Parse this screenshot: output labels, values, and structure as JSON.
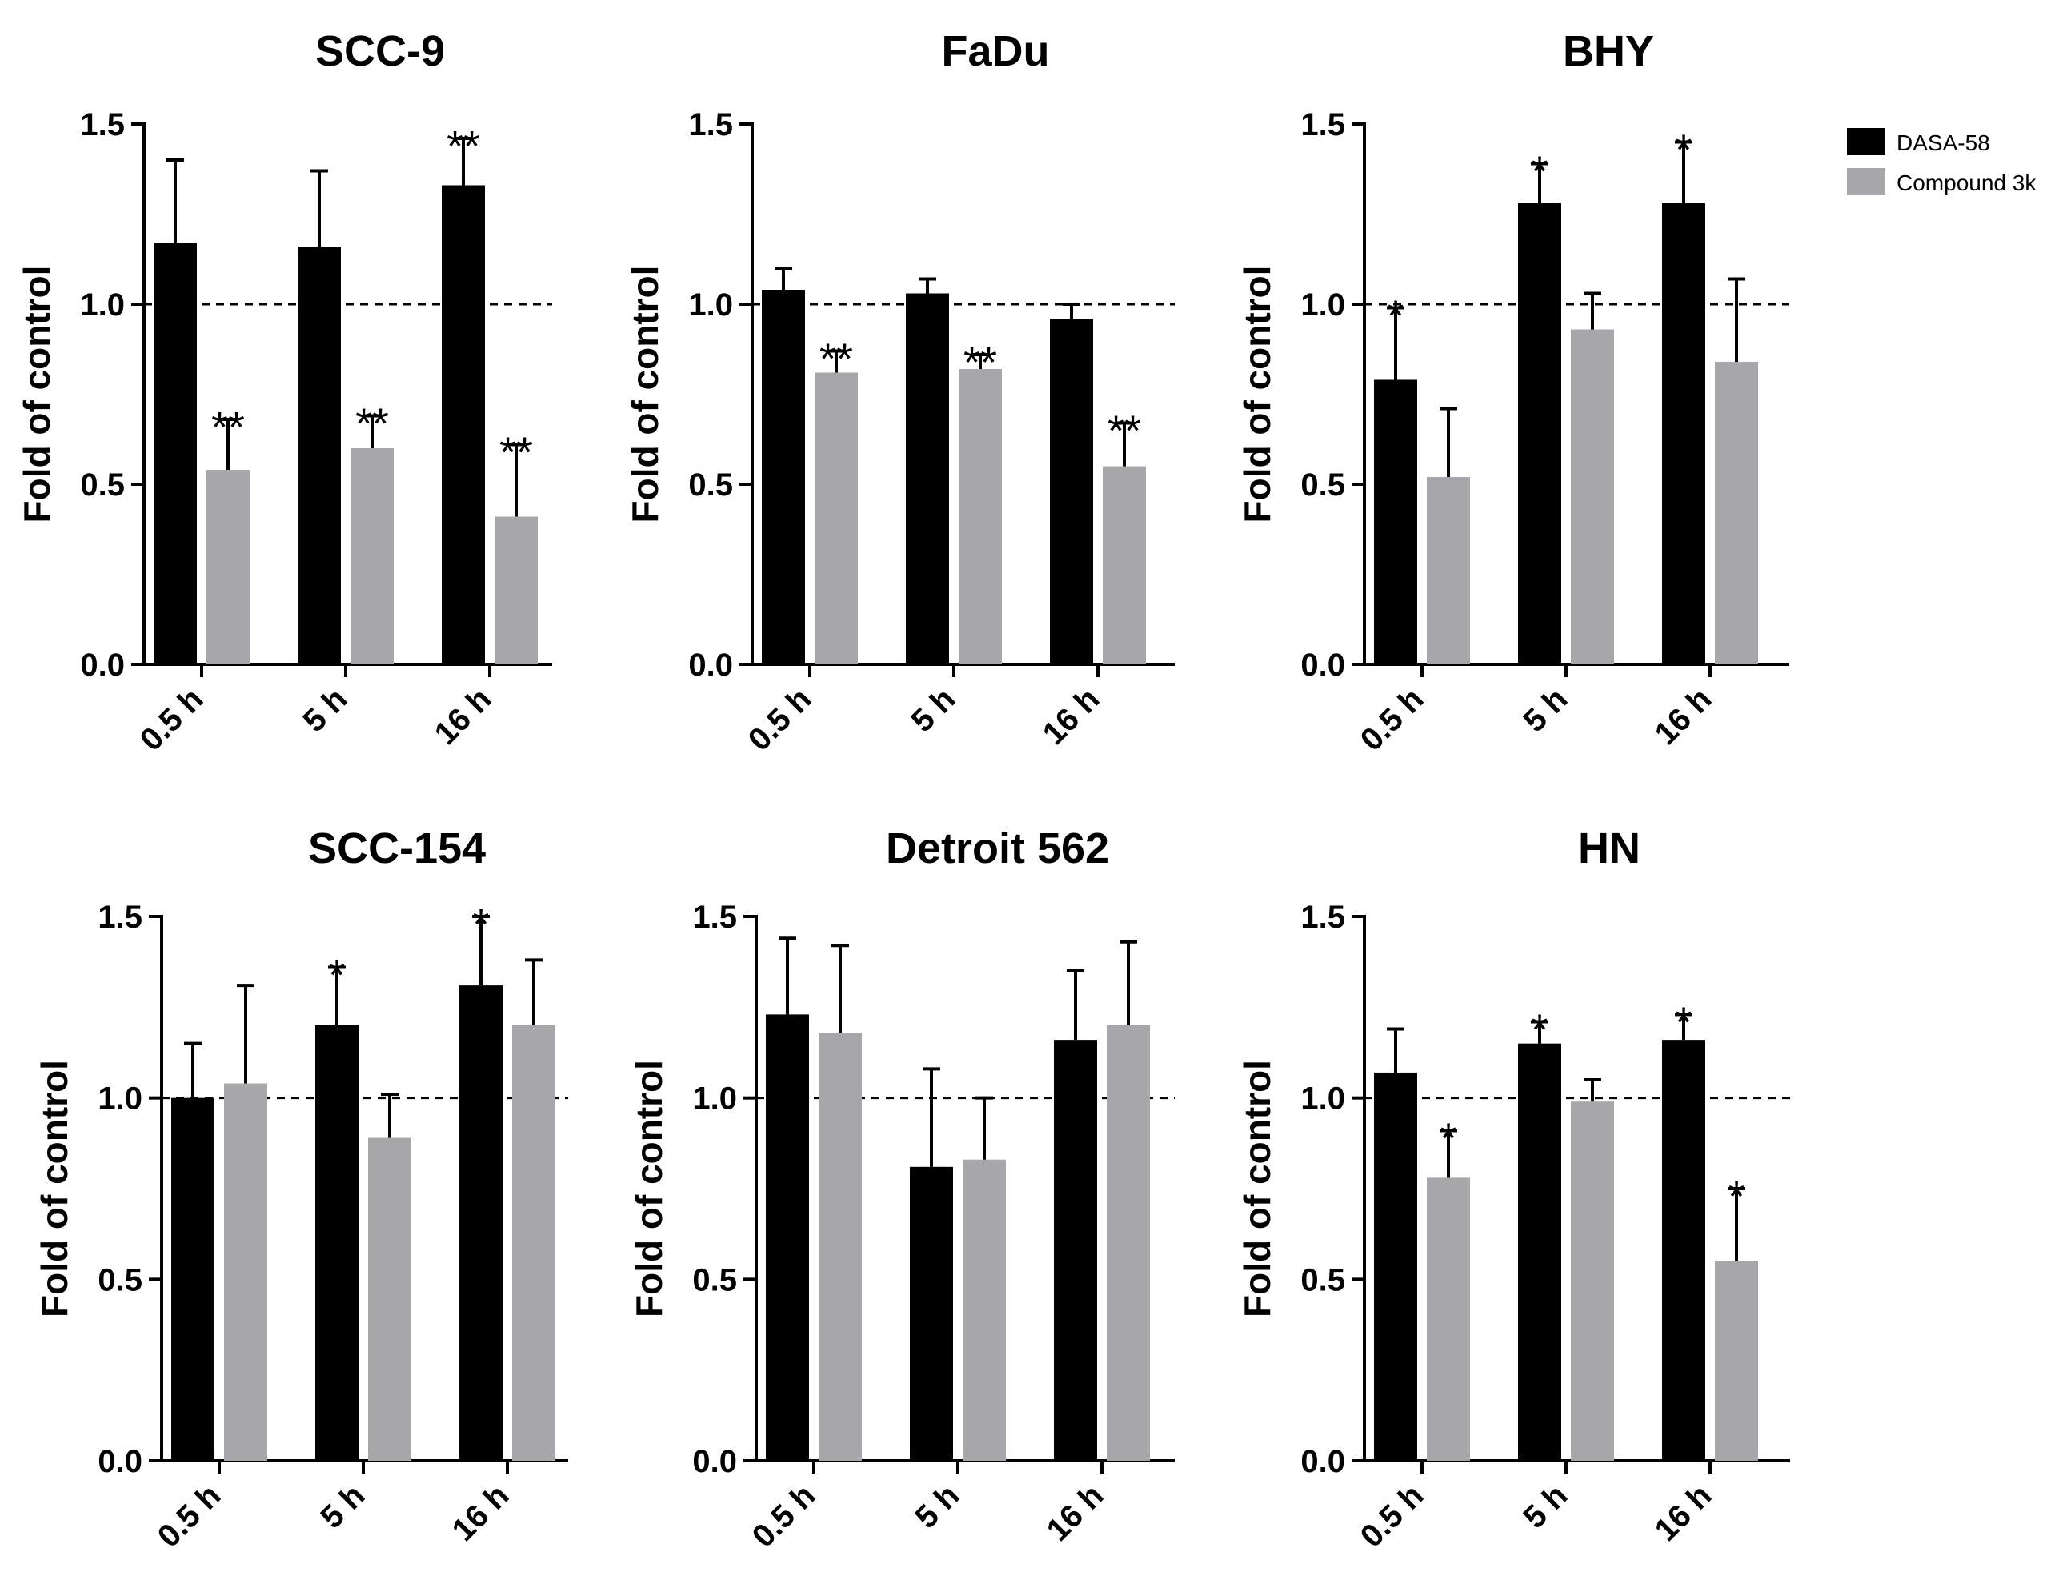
{
  "colors": {
    "dasa": "#000000",
    "compound": "#a7a7ab"
  },
  "legend": {
    "position": "top-right",
    "entries": [
      {
        "name": "DASA-58",
        "color": "#000000"
      },
      {
        "name": "Compound 3k",
        "color": "#a7a7ab"
      }
    ]
  },
  "chart_data": [
    {
      "type": "bar",
      "title": "SCC-9",
      "ylabel": "Fold of control",
      "xlabel": "",
      "categories": [
        "0.5 h",
        "5 h",
        "16 h"
      ],
      "ylim": [
        0,
        1.5
      ],
      "yticks": [
        "0.0",
        "0.5",
        "1.0",
        "1.5"
      ],
      "reference_line": 1.0,
      "series": [
        {
          "name": "DASA-58",
          "values": [
            1.17,
            1.16,
            1.33
          ],
          "errors": [
            0.23,
            0.21,
            0.13
          ],
          "significance": [
            "",
            "",
            "**"
          ]
        },
        {
          "name": "Compound 3k",
          "values": [
            0.54,
            0.6,
            0.41
          ],
          "errors": [
            0.14,
            0.09,
            0.2
          ],
          "significance": [
            "**",
            "**",
            "**"
          ]
        }
      ]
    },
    {
      "type": "bar",
      "title": "FaDu",
      "ylabel": "Fold of control",
      "xlabel": "",
      "categories": [
        "0.5 h",
        "5 h",
        "16 h"
      ],
      "ylim": [
        0,
        1.5
      ],
      "yticks": [
        "0.0",
        "0.5",
        "1.0",
        "1.5"
      ],
      "reference_line": 1.0,
      "series": [
        {
          "name": "DASA-58",
          "values": [
            1.04,
            1.03,
            0.96
          ],
          "errors": [
            0.06,
            0.04,
            0.04
          ],
          "significance": [
            "",
            "",
            ""
          ]
        },
        {
          "name": "Compound 3k",
          "values": [
            0.81,
            0.82,
            0.55
          ],
          "errors": [
            0.06,
            0.04,
            0.12
          ],
          "significance": [
            "**",
            "**",
            "**"
          ]
        }
      ]
    },
    {
      "type": "bar",
      "title": "BHY",
      "ylabel": "Fold of control",
      "xlabel": "",
      "categories": [
        "0.5 h",
        "5 h",
        "16 h"
      ],
      "ylim": [
        0,
        1.5
      ],
      "yticks": [
        "0.0",
        "0.5",
        "1.0",
        "1.5"
      ],
      "reference_line": 1.0,
      "series": [
        {
          "name": "DASA-58",
          "values": [
            0.79,
            1.28,
            1.28
          ],
          "errors": [
            0.2,
            0.11,
            0.17
          ],
          "significance": [
            "*",
            "*",
            "*"
          ]
        },
        {
          "name": "Compound 3k",
          "values": [
            0.52,
            0.93,
            0.84
          ],
          "errors": [
            0.19,
            0.1,
            0.23
          ],
          "significance": [
            "",
            "",
            ""
          ]
        }
      ]
    },
    {
      "type": "bar",
      "title": "SCC-154",
      "ylabel": "Fold of control",
      "xlabel": "",
      "categories": [
        "0.5 h",
        "5 h",
        "16 h"
      ],
      "ylim": [
        0,
        1.5
      ],
      "yticks": [
        "0.0",
        "0.5",
        "1.0",
        "1.5"
      ],
      "reference_line": 1.0,
      "series": [
        {
          "name": "DASA-58",
          "values": [
            1.0,
            1.2,
            1.31
          ],
          "errors": [
            0.15,
            0.16,
            0.19
          ],
          "significance": [
            "",
            "*",
            "*"
          ]
        },
        {
          "name": "Compound 3k",
          "values": [
            1.04,
            0.89,
            1.2
          ],
          "errors": [
            0.27,
            0.12,
            0.18
          ],
          "significance": [
            "",
            "",
            ""
          ]
        }
      ]
    },
    {
      "type": "bar",
      "title": "Detroit 562",
      "ylabel": "Fold of control",
      "xlabel": "",
      "categories": [
        "0.5 h",
        "5 h",
        "16 h"
      ],
      "ylim": [
        0,
        1.5
      ],
      "yticks": [
        "0.0",
        "0.5",
        "1.0",
        "1.5"
      ],
      "reference_line": 1.0,
      "series": [
        {
          "name": "DASA-58",
          "values": [
            1.23,
            0.81,
            1.16
          ],
          "errors": [
            0.21,
            0.27,
            0.19
          ],
          "significance": [
            "",
            "",
            ""
          ]
        },
        {
          "name": "Compound 3k",
          "values": [
            1.18,
            0.83,
            1.2
          ],
          "errors": [
            0.24,
            0.17,
            0.23
          ],
          "significance": [
            "",
            "",
            ""
          ]
        }
      ]
    },
    {
      "type": "bar",
      "title": "HN",
      "ylabel": "Fold of control",
      "xlabel": "",
      "categories": [
        "0.5 h",
        "5 h",
        "16 h"
      ],
      "ylim": [
        0,
        1.5
      ],
      "yticks": [
        "0.0",
        "0.5",
        "1.0",
        "1.5"
      ],
      "reference_line": 1.0,
      "series": [
        {
          "name": "DASA-58",
          "values": [
            1.07,
            1.15,
            1.16
          ],
          "errors": [
            0.12,
            0.06,
            0.07
          ],
          "significance": [
            "",
            "*",
            "*"
          ]
        },
        {
          "name": "Compound 3k",
          "values": [
            0.78,
            0.99,
            0.55
          ],
          "errors": [
            0.13,
            0.06,
            0.2
          ],
          "significance": [
            "*",
            "",
            "*"
          ]
        }
      ]
    }
  ]
}
